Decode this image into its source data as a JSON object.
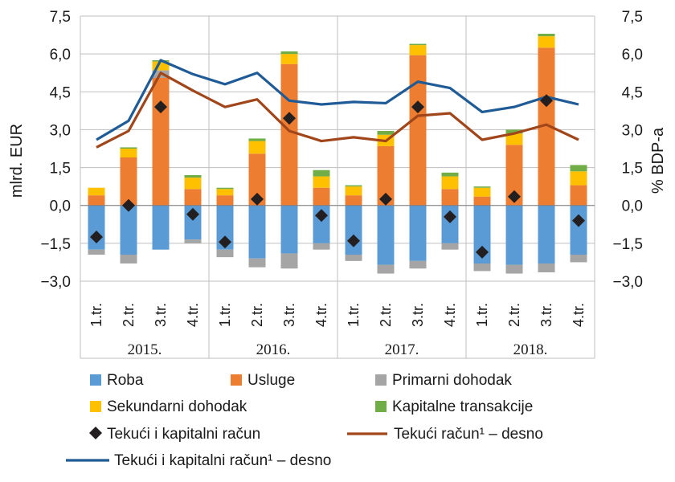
{
  "chart_data": {
    "type": "bar",
    "ylabel_left": "mlrd. EUR",
    "ylabel_right": "% BDP-a",
    "ylim": [
      -3.0,
      7.5
    ],
    "yticks": [
      "7,5",
      "6,0",
      "4,5",
      "3,0",
      "1,5",
      "0,0",
      "−1,5",
      "−3,0"
    ],
    "grid": true,
    "years": [
      "2015.",
      "2016.",
      "2017.",
      "2018."
    ],
    "categories": [
      "1.tr.",
      "2.tr.",
      "3.tr.",
      "4.tr.",
      "1.tr.",
      "2.tr.",
      "3.tr.",
      "4.tr.",
      "1.tr.",
      "2.tr.",
      "3.tr.",
      "4.tr.",
      "1.tr.",
      "2.tr.",
      "3.tr.",
      "4.tr."
    ],
    "stack_series": [
      {
        "name": "Roba",
        "color": "#5b9bd5",
        "values": [
          -1.75,
          -1.95,
          -1.75,
          -1.35,
          -1.75,
          -2.1,
          -1.9,
          -1.5,
          -1.95,
          -2.35,
          -2.2,
          -1.5,
          -2.3,
          -2.35,
          -2.3,
          -1.95
        ]
      },
      {
        "name": "Usluge",
        "color": "#ed7d31",
        "values": [
          0.4,
          1.9,
          5.05,
          0.65,
          0.4,
          2.05,
          5.6,
          0.7,
          0.4,
          2.35,
          5.95,
          0.65,
          0.35,
          2.4,
          6.25,
          0.8
        ]
      },
      {
        "name": "Primarni dohodak",
        "color": "#a5a5a5",
        "values": [
          -0.2,
          -0.35,
          0.3,
          -0.15,
          -0.3,
          -0.35,
          -0.6,
          -0.25,
          -0.25,
          -0.35,
          -0.3,
          -0.25,
          -0.3,
          -0.35,
          -0.35,
          -0.3
        ]
      },
      {
        "name": "Sekundarni dohodak",
        "color": "#ffc000",
        "values": [
          0.3,
          0.35,
          0.35,
          0.45,
          0.25,
          0.5,
          0.4,
          0.45,
          0.35,
          0.45,
          0.4,
          0.5,
          0.35,
          0.45,
          0.45,
          0.55
        ]
      },
      {
        "name": "Kapitalne transakcije",
        "color": "#70ad47",
        "values": [
          0.0,
          0.05,
          0.05,
          0.1,
          0.05,
          0.1,
          0.1,
          0.25,
          0.05,
          0.15,
          0.05,
          0.15,
          0.05,
          0.15,
          0.1,
          0.25
        ]
      }
    ],
    "marker_series": {
      "name": "Tekući i kapitalni račun",
      "color": "#231f20",
      "values": [
        -1.25,
        0.0,
        3.9,
        -0.35,
        -1.45,
        0.25,
        3.45,
        -0.4,
        -1.4,
        0.25,
        3.9,
        -0.45,
        -1.85,
        0.35,
        4.15,
        -0.6
      ]
    },
    "line_series": [
      {
        "name": "Tekući račun¹ – desno",
        "color": "#a0461a",
        "values": [
          2.3,
          2.95,
          5.25,
          4.55,
          3.9,
          4.2,
          2.95,
          2.55,
          2.7,
          2.55,
          3.55,
          3.65,
          2.6,
          2.85,
          3.2,
          2.6
        ]
      },
      {
        "name": "Tekući i kapitalni račun¹ – desno",
        "color": "#1f5b96",
        "values": [
          2.6,
          3.35,
          5.75,
          5.2,
          4.8,
          5.25,
          4.15,
          4.0,
          4.1,
          4.05,
          4.9,
          4.65,
          3.7,
          3.9,
          4.3,
          4.0
        ]
      }
    ],
    "legend_position": "bottom"
  }
}
